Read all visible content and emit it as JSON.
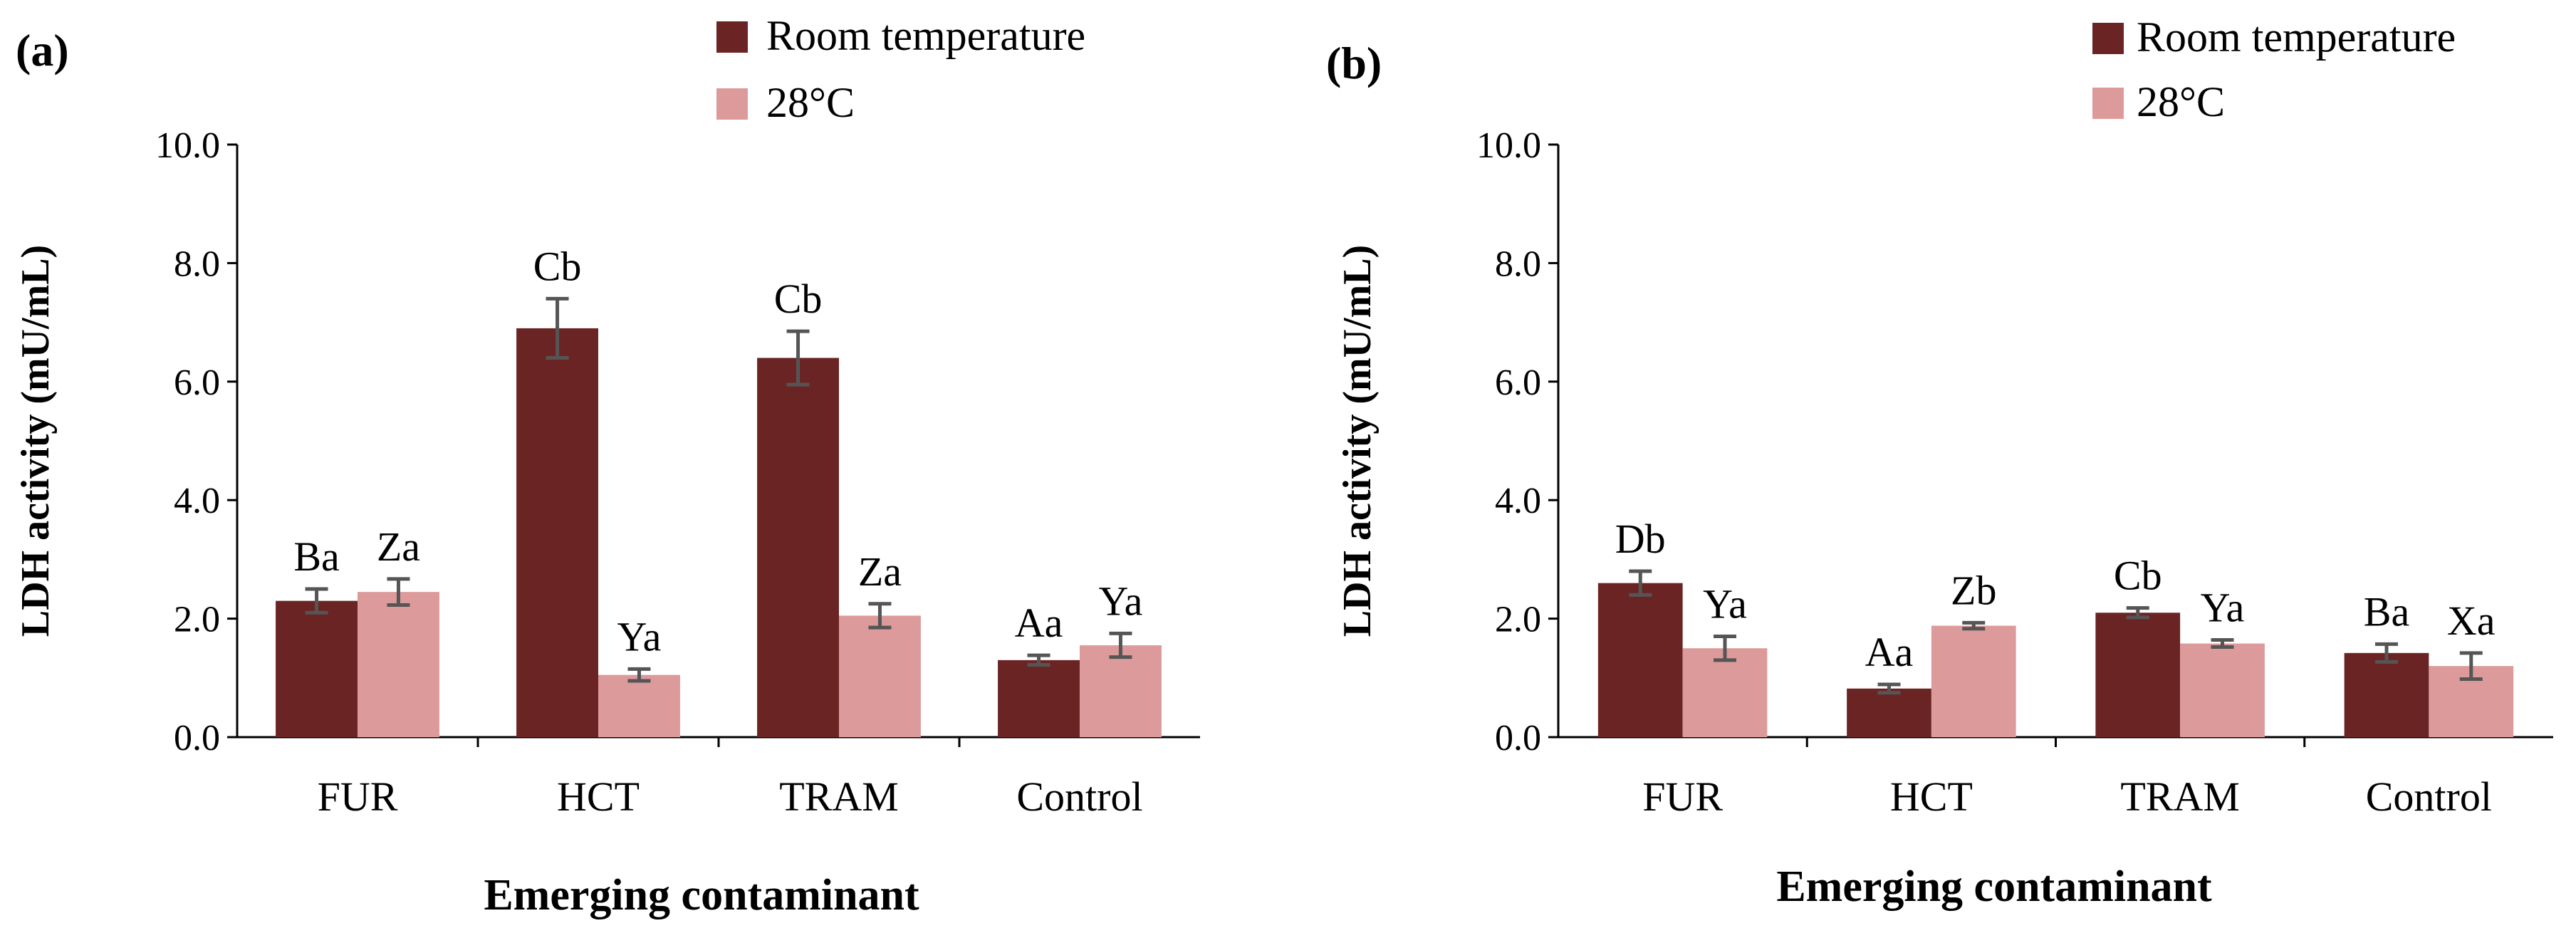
{
  "chart_data": [
    {
      "type": "bar",
      "panel_label": "(a)",
      "categories": [
        "FUR",
        "HCT",
        "TRAM",
        "Control"
      ],
      "series": [
        {
          "name": "Room temperature",
          "color": "#6B2424",
          "values": [
            2.3,
            6.9,
            6.4,
            1.3
          ],
          "errors": [
            0.2,
            0.5,
            0.45,
            0.08
          ],
          "labels": [
            "Ba",
            "Cb",
            "Cb",
            "Aa"
          ]
        },
        {
          "name": "28°C",
          "color": "#DC9A9A",
          "values": [
            2.45,
            1.05,
            2.05,
            1.55
          ],
          "errors": [
            0.22,
            0.1,
            0.2,
            0.2
          ],
          "labels": [
            "Za",
            "Ya",
            "Za",
            "Ya"
          ]
        }
      ],
      "ylim": [
        0,
        10
      ],
      "yticks": [
        "0.0",
        "2.0",
        "4.0",
        "6.0",
        "8.0",
        "10.0"
      ],
      "ylabel": "LDH  activity (mU/mL)",
      "xlabel": "Emerging contaminant",
      "legend": [
        "Room temperature",
        "28°C"
      ]
    },
    {
      "type": "bar",
      "panel_label": "(b)",
      "categories": [
        "FUR",
        "HCT",
        "TRAM",
        "Control"
      ],
      "series": [
        {
          "name": "Room temperature",
          "color": "#6B2424",
          "values": [
            2.6,
            0.82,
            2.1,
            1.42
          ],
          "errors": [
            0.2,
            0.07,
            0.08,
            0.15
          ],
          "labels": [
            "Db",
            "Aa",
            "Cb",
            "Ba"
          ]
        },
        {
          "name": "28°C",
          "color": "#DC9A9A",
          "values": [
            1.5,
            1.88,
            1.58,
            1.2
          ],
          "errors": [
            0.2,
            0.05,
            0.06,
            0.22
          ],
          "labels": [
            "Ya",
            "Zb",
            "Ya",
            "Xa"
          ]
        }
      ],
      "ylim": [
        0,
        10
      ],
      "yticks": [
        "0.0",
        "2.0",
        "4.0",
        "6.0",
        "8.0",
        "10.0"
      ],
      "ylabel": "LDH  activity (mU/mL)",
      "xlabel": "Emerging contaminant",
      "legend": [
        "Room temperature",
        "28°C"
      ]
    }
  ]
}
